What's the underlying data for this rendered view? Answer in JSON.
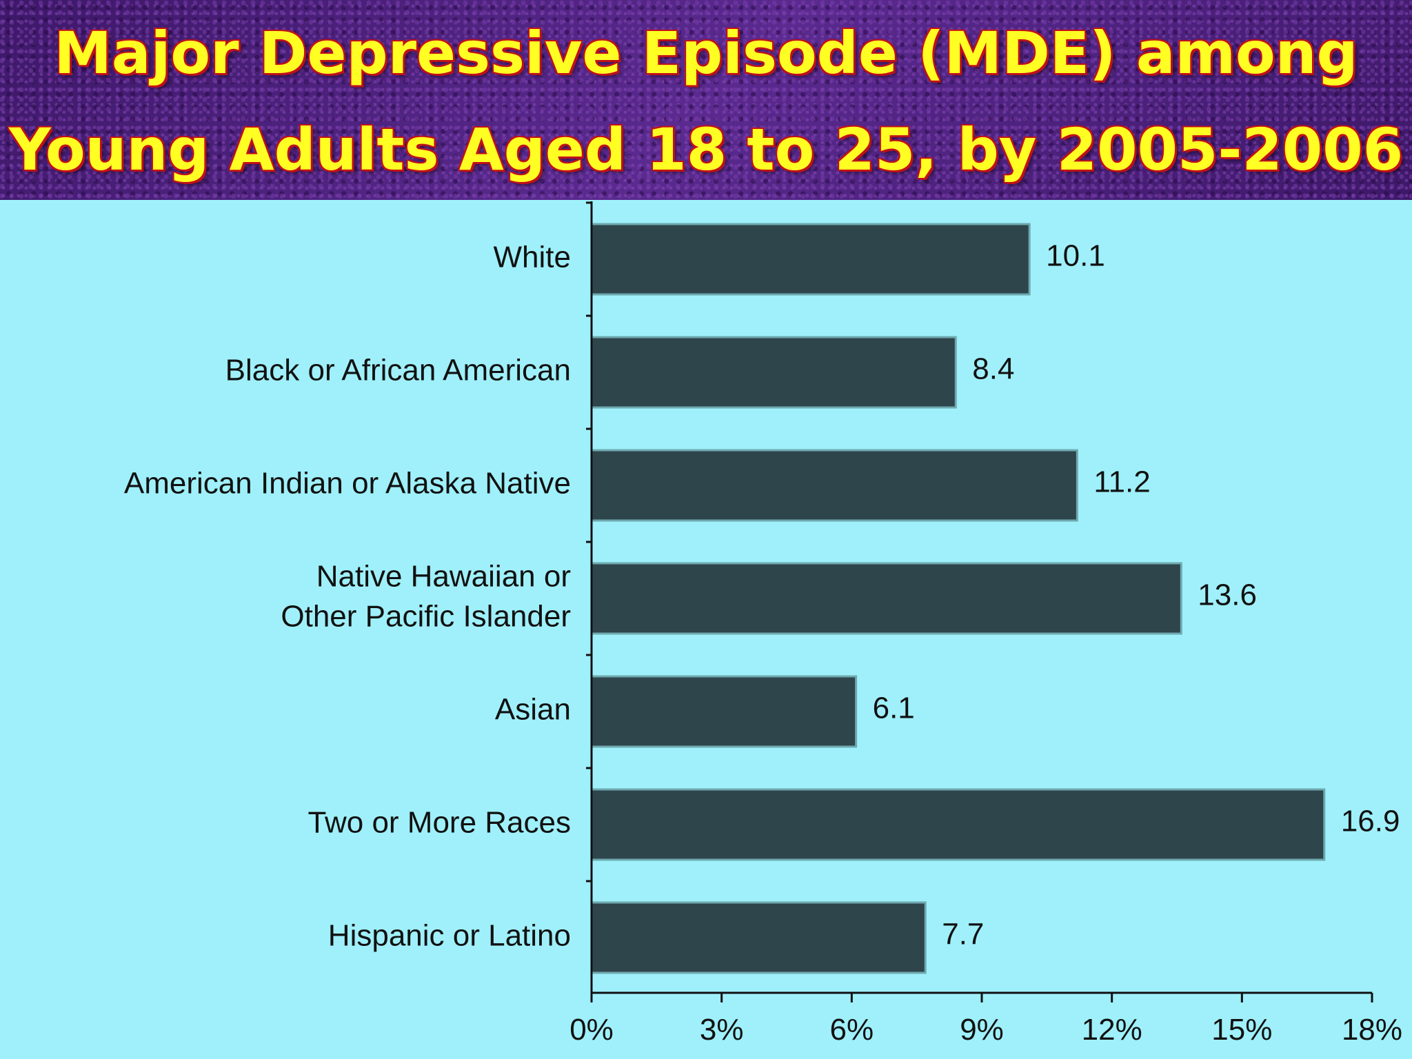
{
  "title": {
    "line1": "Major Depressive Episode (MDE) among",
    "line2": "Young Adults Aged 18 to 25, by 2005-2006"
  },
  "colors": {
    "bar": "#2e454b",
    "background": "#9ff0fa",
    "title_text": "#ffff24",
    "title_outline": "#c0101a",
    "title_band": "#4a1f7a"
  },
  "chart_data": {
    "type": "bar",
    "orientation": "horizontal",
    "title": "Major Depressive Episode (MDE) among Young Adults Aged 18 to 25, by 2005-2006",
    "categories": [
      [
        "White"
      ],
      [
        "Black or African American"
      ],
      [
        "American Indian or Alaska Native"
      ],
      [
        "Native Hawaiian or",
        "Other Pacific Islander"
      ],
      [
        "Asian"
      ],
      [
        "Two or More Races"
      ],
      [
        "Hispanic or Latino"
      ]
    ],
    "values": [
      10.1,
      8.4,
      11.2,
      13.6,
      6.1,
      16.9,
      7.7
    ],
    "value_labels": [
      "10.1",
      "8.4",
      "11.2",
      "13.6",
      "6.1",
      "16.9",
      "7.7"
    ],
    "xlim": [
      0,
      18
    ],
    "xticks": [
      0,
      3,
      6,
      9,
      12,
      15,
      18
    ],
    "xtick_labels": [
      "0%",
      "3%",
      "6%",
      "9%",
      "12%",
      "15%",
      "18%"
    ],
    "xlabel": "",
    "ylabel": "",
    "grid": false,
    "legend": false
  }
}
